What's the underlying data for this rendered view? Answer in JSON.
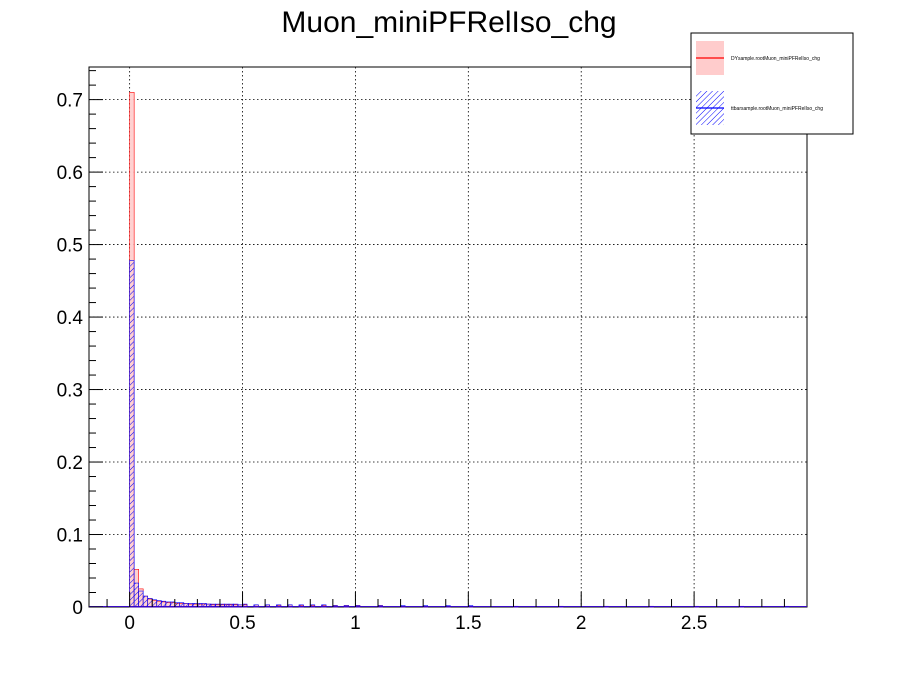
{
  "chart_data": {
    "type": "histogram",
    "title": "Muon_miniPFRelIso_chg",
    "xlabel": "",
    "ylabel": "",
    "xlim": [
      -0.18,
      3.0
    ],
    "ylim": [
      0,
      0.745
    ],
    "x_ticks": [
      0,
      0.5,
      1,
      1.5,
      2,
      2.5
    ],
    "x_tick_labels": [
      "0",
      "0.5",
      "1",
      "1.5",
      "2",
      "2.5"
    ],
    "y_ticks": [
      0,
      0.1,
      0.2,
      0.3,
      0.4,
      0.5,
      0.6,
      0.7
    ],
    "y_tick_labels": [
      "0",
      "0.1",
      "0.2",
      "0.3",
      "0.4",
      "0.5",
      "0.6",
      "0.7"
    ],
    "grid": true,
    "legend_position": "top-right",
    "bin_width": 0.02,
    "series": [
      {
        "name": "DYsample.rootMuon_miniPFRelIso_chg",
        "color": "#ff0000",
        "fill": "#ffcccc",
        "style": "solid-fill",
        "bins": [
          [
            0.0,
            0.71
          ],
          [
            0.02,
            0.052
          ],
          [
            0.04,
            0.025
          ],
          [
            0.06,
            0.015
          ],
          [
            0.08,
            0.011
          ],
          [
            0.1,
            0.009
          ],
          [
            0.12,
            0.008
          ],
          [
            0.14,
            0.007
          ],
          [
            0.16,
            0.006
          ],
          [
            0.18,
            0.006
          ],
          [
            0.2,
            0.005
          ],
          [
            0.22,
            0.005
          ],
          [
            0.24,
            0.005
          ],
          [
            0.26,
            0.004
          ],
          [
            0.28,
            0.004
          ],
          [
            0.3,
            0.004
          ],
          [
            0.32,
            0.004
          ],
          [
            0.34,
            0.004
          ],
          [
            0.36,
            0.003
          ],
          [
            0.38,
            0.003
          ],
          [
            0.4,
            0.003
          ],
          [
            0.42,
            0.003
          ],
          [
            0.44,
            0.003
          ],
          [
            0.46,
            0.003
          ],
          [
            0.48,
            0.003
          ],
          [
            0.5,
            0.003
          ],
          [
            0.55,
            0.003
          ],
          [
            0.6,
            0.003
          ],
          [
            0.65,
            0.002
          ],
          [
            0.7,
            0.003
          ],
          [
            0.75,
            0.002
          ],
          [
            0.8,
            0.002
          ],
          [
            0.85,
            0.002
          ],
          [
            0.9,
            0.002
          ],
          [
            0.95,
            0.002
          ],
          [
            1.0,
            0.002
          ],
          [
            1.1,
            0.002
          ],
          [
            1.2,
            0.001
          ],
          [
            1.3,
            0.001
          ],
          [
            1.4,
            0.001
          ],
          [
            1.5,
            0.001
          ],
          [
            1.7,
            0.001
          ],
          [
            1.9,
            0.001
          ],
          [
            2.1,
            0.001
          ],
          [
            2.3,
            0.001
          ],
          [
            2.5,
            0.001
          ],
          [
            2.7,
            0.001
          ],
          [
            2.9,
            0.0
          ]
        ]
      },
      {
        "name": "ttbarsample.rootMuon_miniPFRelIso_chg",
        "color": "#0000ff",
        "fill": "#0000ff",
        "style": "hatched",
        "bins": [
          [
            0.0,
            0.478
          ],
          [
            0.02,
            0.033
          ],
          [
            0.04,
            0.022
          ],
          [
            0.06,
            0.015
          ],
          [
            0.08,
            0.012
          ],
          [
            0.1,
            0.01
          ],
          [
            0.12,
            0.009
          ],
          [
            0.14,
            0.008
          ],
          [
            0.16,
            0.007
          ],
          [
            0.18,
            0.007
          ],
          [
            0.2,
            0.006
          ],
          [
            0.22,
            0.006
          ],
          [
            0.24,
            0.005
          ],
          [
            0.26,
            0.005
          ],
          [
            0.28,
            0.005
          ],
          [
            0.3,
            0.005
          ],
          [
            0.32,
            0.005
          ],
          [
            0.34,
            0.004
          ],
          [
            0.36,
            0.004
          ],
          [
            0.38,
            0.004
          ],
          [
            0.4,
            0.004
          ],
          [
            0.42,
            0.004
          ],
          [
            0.44,
            0.004
          ],
          [
            0.46,
            0.004
          ],
          [
            0.48,
            0.003
          ],
          [
            0.5,
            0.004
          ],
          [
            0.55,
            0.003
          ],
          [
            0.6,
            0.003
          ],
          [
            0.65,
            0.003
          ],
          [
            0.7,
            0.003
          ],
          [
            0.75,
            0.003
          ],
          [
            0.8,
            0.003
          ],
          [
            0.85,
            0.003
          ],
          [
            0.9,
            0.002
          ],
          [
            0.95,
            0.002
          ],
          [
            1.0,
            0.002
          ],
          [
            1.1,
            0.002
          ],
          [
            1.2,
            0.002
          ],
          [
            1.3,
            0.002
          ],
          [
            1.4,
            0.002
          ],
          [
            1.5,
            0.002
          ],
          [
            1.7,
            0.001
          ],
          [
            1.9,
            0.001
          ],
          [
            2.1,
            0.001
          ],
          [
            2.3,
            0.001
          ],
          [
            2.5,
            0.001
          ],
          [
            2.7,
            0.001
          ],
          [
            2.9,
            0.001
          ]
        ]
      }
    ]
  }
}
